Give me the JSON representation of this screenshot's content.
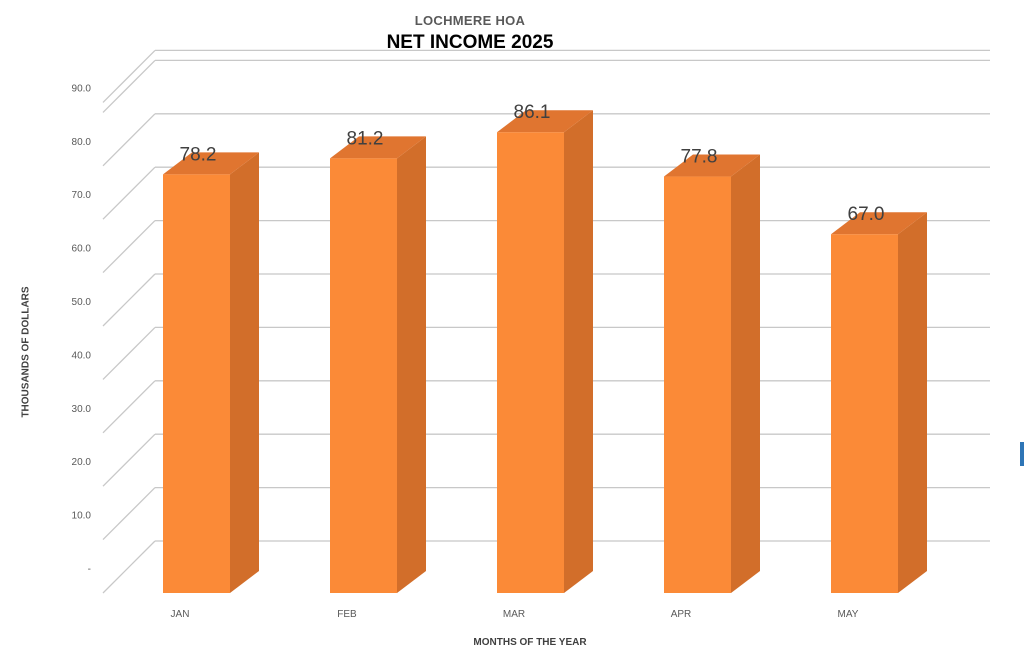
{
  "chart_data": {
    "type": "bar",
    "subtitle": "LOCHMERE HOA",
    "title": "NET INCOME 2025",
    "xlabel": "MONTHS OF THE YEAR",
    "ylabel": "THOUSANDS OF DOLLARS",
    "categories": [
      "JAN",
      "FEB",
      "MAR",
      "APR",
      "MAY"
    ],
    "values": [
      78.2,
      81.2,
      86.1,
      77.8,
      67.0
    ],
    "data_labels": [
      "78.2",
      "81.2",
      "86.1",
      "77.8",
      "67.0"
    ],
    "y_ticks": [
      "-",
      "10.0",
      "20.0",
      "30.0",
      "40.0",
      "50.0",
      "60.0",
      "70.0",
      "80.0",
      "90.0"
    ],
    "ylim": [
      0,
      90
    ],
    "grid": true,
    "legend": "none",
    "style": "3d-column",
    "colors": {
      "front": "#fb8a37",
      "side": "#d26e2a",
      "top": "#e07530",
      "grid": "#c8c8c8"
    }
  }
}
